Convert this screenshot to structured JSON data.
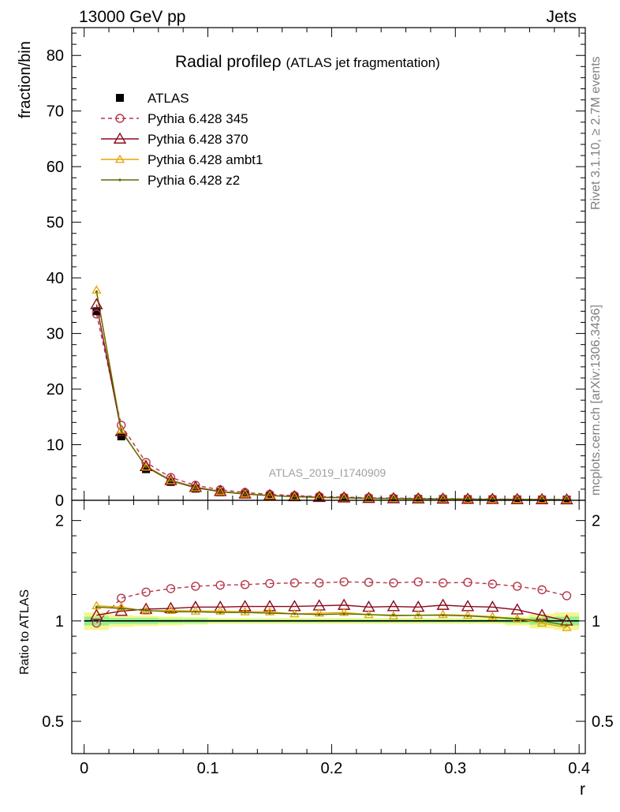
{
  "header": {
    "energy_label": "13000 GeV pp",
    "process_label": "Jets",
    "rivet_label": "Rivet 3.1.10, ≥ 2.7M events",
    "mcplots_label": "mcplots.cern.ch [arXiv:1306.3436]",
    "analysis_label": "ATLAS_2019_I1740909"
  },
  "chart_data": [
    {
      "type": "line",
      "title_main": "Radial profile",
      "title_symbol": "ρ",
      "title_sub": "(ATLAS jet fragmentation)",
      "xlabel": "r",
      "ylabel": "fraction/bin",
      "xlim": [
        -0.01,
        0.405
      ],
      "ylim": [
        0,
        85
      ],
      "x_ticks": [
        0,
        0.1,
        0.2,
        0.3,
        0.4
      ],
      "x_tick_labels": [
        "0",
        "0.1",
        "0.2",
        "0.3",
        "0.4"
      ],
      "y_ticks": [
        0,
        10,
        20,
        30,
        40,
        50,
        60,
        70,
        80
      ],
      "y_tick_labels": [
        "0",
        "10",
        "20",
        "30",
        "40",
        "50",
        "60",
        "70",
        "80"
      ],
      "legend_position": "top-left",
      "x": [
        0.01,
        0.03,
        0.05,
        0.07,
        0.09,
        0.11,
        0.13,
        0.15,
        0.17,
        0.19,
        0.21,
        0.23,
        0.25,
        0.27,
        0.29,
        0.31,
        0.33,
        0.35,
        0.37,
        0.39
      ],
      "series": [
        {
          "name": "ATLAS",
          "color": "#000000",
          "marker": "filled-square",
          "dash": "none",
          "values": [
            34.0,
            11.5,
            5.6,
            3.3,
            2.1,
            1.45,
            1.05,
            0.8,
            0.62,
            0.5,
            0.41,
            0.34,
            0.29,
            0.25,
            0.22,
            0.19,
            0.17,
            0.15,
            0.13,
            0.11
          ]
        },
        {
          "name": "Pythia 6.428 345",
          "color": "#b5374a",
          "marker": "open-circle",
          "dash": "dashed",
          "values": [
            33.5,
            13.5,
            6.8,
            4.1,
            2.7,
            1.9,
            1.4,
            1.07,
            0.84,
            0.68,
            0.56,
            0.46,
            0.39,
            0.34,
            0.3,
            0.26,
            0.23,
            0.2,
            0.17,
            0.13
          ]
        },
        {
          "name": "Pythia 6.428 370",
          "color": "#8b0a1e",
          "marker": "open-triangle",
          "dash": "none",
          "values": [
            35.2,
            12.4,
            6.1,
            3.6,
            2.35,
            1.6,
            1.16,
            0.88,
            0.68,
            0.55,
            0.46,
            0.37,
            0.32,
            0.27,
            0.24,
            0.21,
            0.19,
            0.16,
            0.135,
            0.11
          ]
        },
        {
          "name": "Pythia 6.428 ambt1",
          "color": "#e8a300",
          "marker": "open-triangle-small",
          "dash": "none",
          "values": [
            37.8,
            12.6,
            6.0,
            3.55,
            2.25,
            1.55,
            1.12,
            0.85,
            0.65,
            0.53,
            0.44,
            0.35,
            0.3,
            0.26,
            0.23,
            0.2,
            0.17,
            0.15,
            0.13,
            0.105
          ]
        },
        {
          "name": "Pythia 6.428 z2",
          "color": "#5a6e00",
          "marker": "dot",
          "dash": "none",
          "values": [
            37.5,
            12.5,
            6.0,
            3.5,
            2.25,
            1.54,
            1.11,
            0.84,
            0.65,
            0.52,
            0.43,
            0.35,
            0.3,
            0.26,
            0.23,
            0.2,
            0.17,
            0.15,
            0.13,
            0.105
          ]
        }
      ]
    },
    {
      "type": "line",
      "ylabel": "Ratio to ATLAS",
      "xlabel": "r",
      "xlim": [
        -0.01,
        0.405
      ],
      "ylim": [
        0.4,
        2.3
      ],
      "y_scale": "log",
      "y_ticks": [
        0.5,
        1,
        2
      ],
      "y_tick_labels": [
        "0.5",
        "1",
        "2"
      ],
      "reference_value": 1,
      "x": [
        0.01,
        0.03,
        0.05,
        0.07,
        0.09,
        0.11,
        0.13,
        0.15,
        0.17,
        0.19,
        0.21,
        0.23,
        0.25,
        0.27,
        0.29,
        0.31,
        0.33,
        0.35,
        0.37,
        0.39
      ],
      "band_inner": [
        [
          0.97,
          1.03
        ],
        [
          0.98,
          1.02
        ],
        [
          0.98,
          1.02
        ],
        [
          0.985,
          1.015
        ],
        [
          0.985,
          1.015
        ],
        [
          0.99,
          1.01
        ],
        [
          0.99,
          1.01
        ],
        [
          0.99,
          1.01
        ],
        [
          0.99,
          1.01
        ],
        [
          0.99,
          1.01
        ],
        [
          0.99,
          1.01
        ],
        [
          0.99,
          1.01
        ],
        [
          0.99,
          1.01
        ],
        [
          0.99,
          1.01
        ],
        [
          0.99,
          1.01
        ],
        [
          0.99,
          1.01
        ],
        [
          0.99,
          1.01
        ],
        [
          0.985,
          1.015
        ],
        [
          0.975,
          1.025
        ],
        [
          0.97,
          1.03
        ]
      ],
      "band_outer": [
        [
          0.94,
          1.06
        ],
        [
          0.96,
          1.04
        ],
        [
          0.965,
          1.035
        ],
        [
          0.97,
          1.03
        ],
        [
          0.975,
          1.025
        ],
        [
          0.98,
          1.02
        ],
        [
          0.98,
          1.02
        ],
        [
          0.98,
          1.02
        ],
        [
          0.98,
          1.02
        ],
        [
          0.98,
          1.02
        ],
        [
          0.98,
          1.02
        ],
        [
          0.98,
          1.02
        ],
        [
          0.98,
          1.02
        ],
        [
          0.98,
          1.02
        ],
        [
          0.98,
          1.02
        ],
        [
          0.98,
          1.02
        ],
        [
          0.98,
          1.02
        ],
        [
          0.97,
          1.03
        ],
        [
          0.95,
          1.05
        ],
        [
          0.94,
          1.06
        ]
      ],
      "series": [
        {
          "name": "Pythia 6.428 345",
          "values": [
            0.985,
            1.17,
            1.22,
            1.25,
            1.27,
            1.28,
            1.285,
            1.295,
            1.3,
            1.3,
            1.31,
            1.305,
            1.3,
            1.31,
            1.3,
            1.305,
            1.29,
            1.27,
            1.24,
            1.19
          ]
        },
        {
          "name": "Pythia 6.428 370",
          "values": [
            1.04,
            1.07,
            1.085,
            1.09,
            1.1,
            1.1,
            1.105,
            1.105,
            1.105,
            1.11,
            1.115,
            1.1,
            1.105,
            1.1,
            1.115,
            1.105,
            1.1,
            1.08,
            1.04,
            1.0
          ]
        },
        {
          "name": "Pythia 6.428 ambt1",
          "values": [
            1.11,
            1.1,
            1.07,
            1.075,
            1.07,
            1.07,
            1.065,
            1.065,
            1.05,
            1.055,
            1.06,
            1.045,
            1.035,
            1.04,
            1.045,
            1.04,
            1.03,
            1.015,
            0.985,
            0.955
          ]
        },
        {
          "name": "Pythia 6.428 z2",
          "values": [
            1.1,
            1.09,
            1.075,
            1.065,
            1.065,
            1.06,
            1.06,
            1.055,
            1.05,
            1.045,
            1.05,
            1.045,
            1.04,
            1.04,
            1.04,
            1.035,
            1.025,
            1.015,
            1.0,
            0.97
          ]
        }
      ]
    }
  ]
}
